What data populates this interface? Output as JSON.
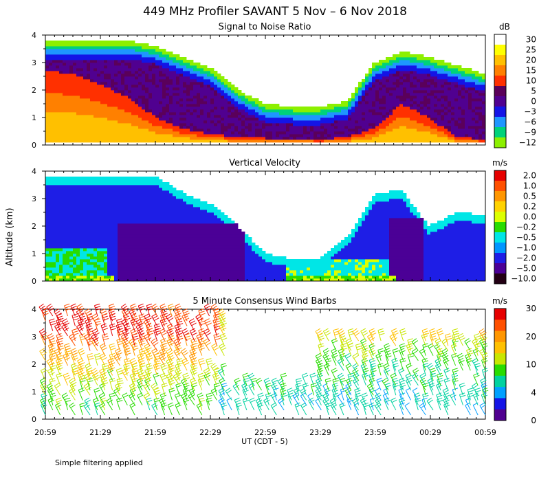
{
  "figure": {
    "title": "449 MHz Profiler SAVANT  5 Nov –  6 Nov 2018",
    "ylabel": "Altitude (km)",
    "xlabel": "UT  (CDT - 5)",
    "footnote": "Simple filtering applied"
  },
  "chart_data": [
    {
      "type": "heatmap",
      "title": "Signal to Noise Ratio",
      "ylim": [
        0,
        4
      ],
      "yticks": [
        "0",
        "1",
        "2",
        "3",
        "4"
      ],
      "colorbar": {
        "unit": "dB",
        "labels": [
          "30",
          "25",
          "20",
          "15",
          "10",
          "5",
          "0",
          "−3",
          "−6",
          "−9",
          "−12"
        ],
        "colors": [
          "#ffffff",
          "#ffff00",
          "#ffc000",
          "#ff8000",
          "#ff3000",
          "#5a005a",
          "#500090",
          "#1414e6",
          "#1e96ff",
          "#00d27a",
          "#8cf000"
        ]
      },
      "x_hours": [
        0,
        0.5,
        1,
        1.5,
        2,
        2.5,
        3,
        3.5,
        4
      ],
      "echo_top_km": [
        3.8,
        3.8,
        3.8,
        3.8,
        3.6,
        3.2,
        2.8,
        2.0,
        1.5,
        1.4,
        1.4,
        1.6,
        3.0,
        3.4,
        3.2,
        2.9,
        2.6
      ],
      "strong_echo_top_km": [
        2.7,
        2.6,
        2.2,
        1.7,
        1.0,
        0.6,
        0.4,
        0.3,
        0.25,
        0.25,
        0.2,
        0.3,
        0.6,
        1.5,
        1.0,
        0.3,
        0.2
      ]
    },
    {
      "type": "heatmap",
      "title": "Vertical Velocity",
      "ylim": [
        0,
        4
      ],
      "yticks": [
        "0",
        "1",
        "2",
        "3",
        "4"
      ],
      "colorbar": {
        "unit": "m/s",
        "labels": [
          "2.0",
          "1.0",
          "0.5",
          "0.2",
          "0.0",
          "−0.2",
          "−0.5",
          "−1.0",
          "−2.0",
          "−5.0",
          "−10.0"
        ],
        "colors": [
          "#e60000",
          "#ff5000",
          "#ff9600",
          "#ffd200",
          "#dcff00",
          "#28dc00",
          "#00e6e6",
          "#0096ff",
          "#1e1ee6",
          "#4b0096",
          "#230014"
        ]
      },
      "x_hours": [
        0,
        0.5,
        1,
        1.5,
        2,
        2.5,
        3,
        3.5,
        4
      ],
      "echo_top_km": [
        3.8,
        3.8,
        3.8,
        3.8,
        3.8,
        3.2,
        2.8,
        2.0,
        1.0,
        0.8,
        0.8,
        1.6,
        3.2,
        3.3,
        2.0,
        2.5,
        2.4
      ]
    },
    {
      "type": "scatter",
      "title": "5 Minute Consensus Wind Barbs",
      "ylim": [
        0,
        4
      ],
      "yticks": [
        "0",
        "1",
        "2",
        "3",
        "4"
      ],
      "xticks": [
        "20:59",
        "21:29",
        "21:59",
        "22:29",
        "22:59",
        "23:29",
        "23:59",
        "00:29",
        "00:59"
      ],
      "colorbar": {
        "unit": "m/s",
        "labels": [
          "30",
          "20",
          "10",
          "4",
          "0"
        ],
        "colors": [
          "#e60000",
          "#ff5000",
          "#ff9600",
          "#ffc000",
          "#c8e600",
          "#28dc00",
          "#00d2a0",
          "#00a0ff",
          "#1414e6",
          "#500090"
        ]
      },
      "wind_speed_profile_ms": [
        {
          "altitude_km": 0.5,
          "speed": 12
        },
        {
          "altitude_km": 1.5,
          "speed": 16
        },
        {
          "altitude_km": 2.5,
          "speed": 22
        },
        {
          "altitude_km": 3.0,
          "speed": 28
        },
        {
          "altitude_km": 3.5,
          "speed": 25
        }
      ]
    }
  ]
}
